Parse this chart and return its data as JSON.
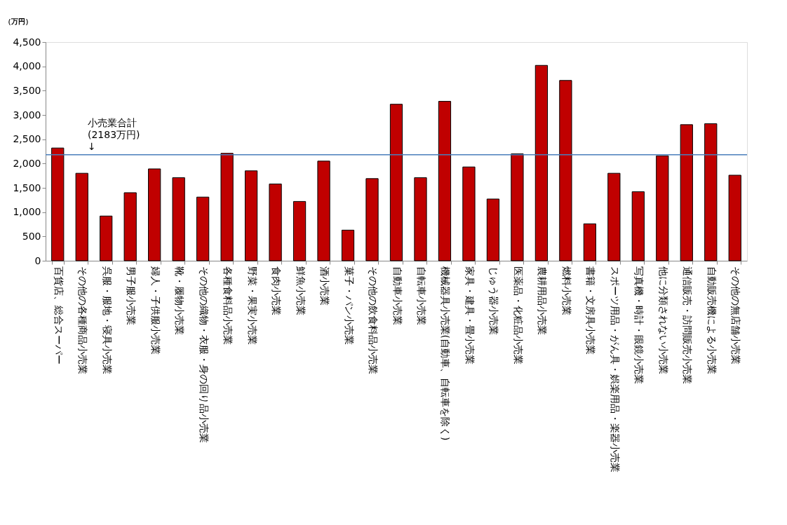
{
  "chart_data": {
    "type": "bar",
    "ylabel": "（万円）",
    "categories": [
      "百貨店、総合スーパー",
      "その他の各種商品小売業",
      "呉服・服地・寝具小売業",
      "男子服小売業",
      "婦人・子供服小売業",
      "靴・履物小売業",
      "その他の織物・衣服・身の回り品小売業",
      "各種食料品小売業",
      "野菜・果実小売業",
      "食肉小売業",
      "鮮魚小売業",
      "酒小売業",
      "菓子・パン小売業",
      "その他の飲食料品小売業",
      "自動車小売業",
      "自転車小売業",
      "機械器具小売業(自動車、自転車を除く)",
      "家具・建具・畳小売業",
      "じゅう器小売業",
      "医薬品・化粧品小売業",
      "農耕用品小売業",
      "燃料小売業",
      "書籍・文房具小売業",
      "スポーツ用品・がん具・娯楽用品・楽器小売業",
      "写真機・時計・眼鏡小売業",
      "他に分類されない小売業",
      "通信販売・訪問販売小売業",
      "自動販売機による小売業",
      "その他の無店舗小売業"
    ],
    "series": [
      {
        "color": "#c00000",
        "values": [
          2320,
          1800,
          920,
          1400,
          1890,
          1710,
          1310,
          2210,
          1850,
          1580,
          1220,
          2050,
          630,
          1690,
          3220,
          1710,
          3280,
          1930,
          1270,
          2200,
          4020,
          3710,
          760,
          1800,
          1420,
          2160,
          2800,
          2820,
          1760
        ]
      }
    ],
    "ylim": [
      0,
      4500
    ],
    "yticks": [
      {
        "value": 0,
        "label": "0"
      },
      {
        "value": 500,
        "label": "500"
      },
      {
        "value": 1000,
        "label": "1,000"
      },
      {
        "value": 1500,
        "label": "1,500"
      },
      {
        "value": 2000,
        "label": "2,000"
      },
      {
        "value": 2500,
        "label": "2,500"
      },
      {
        "value": 3000,
        "label": "3,000"
      },
      {
        "value": 3500,
        "label": "3,500"
      },
      {
        "value": 4000,
        "label": "4,000"
      },
      {
        "value": 4500,
        "label": "4,500"
      }
    ],
    "ref_lines": [
      {
        "axis": "y",
        "value": 2183,
        "label": "小売業合計\n(2183万円)\n↓",
        "color": "#4a7ebb"
      }
    ],
    "grid": false,
    "legend": false
  }
}
